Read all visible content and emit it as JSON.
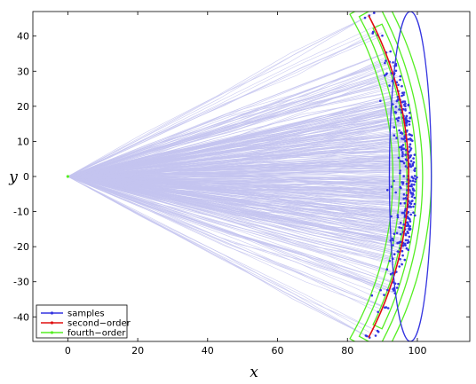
{
  "chart_data": {
    "type": "line",
    "xlabel": "x",
    "ylabel": "y",
    "xlim": [
      -10,
      115
    ],
    "ylim": [
      -47,
      47
    ],
    "x_ticks": [
      0,
      20,
      40,
      60,
      80,
      100
    ],
    "y_ticks": [
      -40,
      -30,
      -20,
      -10,
      0,
      10,
      20,
      30,
      40
    ],
    "grid": false,
    "legend_position": "bottom-left",
    "origin": [
      0,
      0
    ],
    "arc_radius": 100,
    "arc_half_angle_deg": 28,
    "colors": {
      "trajectories": "#c4c4f0",
      "samples": "#3434e0",
      "second_order": "#e01010",
      "fourth_order": "#55ee22"
    },
    "series": [
      {
        "name": "samples",
        "kind": "scatter + covariance ellipse",
        "ellipse": {
          "center": [
            98,
            0
          ],
          "semi_axes": [
            6,
            47
          ]
        },
        "points_distribution": "scattered along arc of radius ~100 from origin, x 90–100, y -45 to 47"
      },
      {
        "name": "second-order",
        "kind": "arc (red curve)",
        "endpoints": [
          [
            81,
            -45
          ],
          [
            81,
            46
          ]
        ],
        "apex": [
          98,
          0
        ]
      },
      {
        "name": "fourth-order",
        "kind": "banana-shaped uncertainty contours",
        "contours": 3,
        "apex": [
          100,
          0
        ]
      }
    ],
    "legend": [
      "samples",
      "second−order",
      "fourth−order"
    ]
  }
}
